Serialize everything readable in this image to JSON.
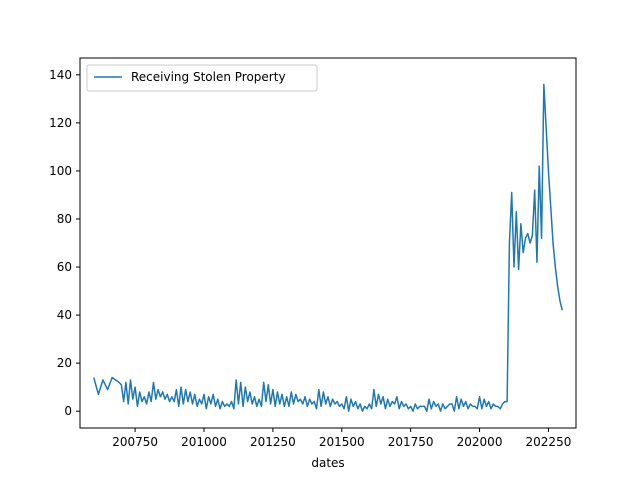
{
  "chart_data": {
    "type": "line",
    "title": "",
    "xlabel": "dates",
    "ylabel": "",
    "xlim": [
      200550,
      202350
    ],
    "ylim": [
      -7,
      147
    ],
    "xticks": [
      200750,
      201000,
      201250,
      201500,
      201750,
      202000,
      202250
    ],
    "yticks": [
      0,
      20,
      40,
      60,
      80,
      100,
      120,
      140
    ],
    "grid": false,
    "legend": {
      "placement": "top-left",
      "entries": [
        "Receiving Stolen Property"
      ]
    },
    "series": [
      {
        "name": "Receiving Stolen Property",
        "color": "#1f77b4",
        "x": [
          200601,
          200603,
          200605,
          200607,
          200609,
          200612,
          200701,
          200702,
          200703,
          200704,
          200705,
          200706,
          200707,
          200708,
          200709,
          200710,
          200711,
          200712,
          200801,
          200802,
          200803,
          200804,
          200805,
          200806,
          200807,
          200808,
          200809,
          200810,
          200811,
          200812,
          200901,
          200902,
          200903,
          200904,
          200905,
          200906,
          200907,
          200908,
          200909,
          200910,
          200911,
          200912,
          201001,
          201002,
          201003,
          201004,
          201005,
          201006,
          201007,
          201008,
          201009,
          201010,
          201011,
          201012,
          201101,
          201102,
          201103,
          201104,
          201105,
          201106,
          201107,
          201108,
          201109,
          201110,
          201111,
          201112,
          201201,
          201202,
          201203,
          201204,
          201205,
          201206,
          201207,
          201208,
          201209,
          201210,
          201211,
          201212,
          201301,
          201302,
          201303,
          201304,
          201305,
          201306,
          201307,
          201308,
          201309,
          201310,
          201311,
          201312,
          201401,
          201402,
          201403,
          201404,
          201405,
          201406,
          201407,
          201408,
          201409,
          201410,
          201411,
          201412,
          201501,
          201502,
          201503,
          201504,
          201505,
          201506,
          201507,
          201508,
          201509,
          201510,
          201511,
          201512,
          201601,
          201602,
          201603,
          201604,
          201605,
          201606,
          201607,
          201608,
          201609,
          201610,
          201611,
          201612,
          201701,
          201702,
          201703,
          201704,
          201705,
          201706,
          201707,
          201708,
          201709,
          201710,
          201711,
          201712,
          201801,
          201802,
          201803,
          201804,
          201805,
          201806,
          201807,
          201808,
          201809,
          201810,
          201811,
          201812,
          201901,
          201902,
          201903,
          201904,
          201905,
          201906,
          201907,
          201908,
          201909,
          201910,
          201911,
          201912,
          202001,
          202002,
          202003,
          202004,
          202005,
          202006,
          202007,
          202008,
          202009,
          202010,
          202011,
          202012,
          202101,
          202102,
          202103,
          202104,
          202105,
          202106,
          202107,
          202108,
          202109,
          202110,
          202111,
          202112,
          202201,
          202202,
          202203,
          202204,
          202205,
          202206,
          202207,
          202208,
          202209,
          202210,
          202211,
          202212,
          202301
        ],
        "values": [
          14,
          7,
          13,
          9,
          14,
          12,
          11,
          4,
          12,
          3,
          13,
          5,
          10,
          2,
          8,
          4,
          6,
          3,
          8,
          4,
          12,
          5,
          9,
          6,
          8,
          5,
          7,
          4,
          6,
          4,
          9,
          2,
          10,
          3,
          9,
          4,
          8,
          3,
          7,
          2,
          5,
          3,
          7,
          1,
          6,
          3,
          7,
          2,
          5,
          1,
          4,
          2,
          3,
          2,
          4,
          1,
          13,
          3,
          12,
          2,
          10,
          4,
          8,
          3,
          6,
          2,
          5,
          2,
          12,
          4,
          11,
          3,
          9,
          2,
          8,
          3,
          7,
          2,
          6,
          2,
          8,
          3,
          7,
          4,
          5,
          3,
          6,
          2,
          5,
          3,
          4,
          1,
          9,
          2,
          8,
          3,
          6,
          2,
          5,
          3,
          4,
          2,
          3,
          1,
          6,
          0,
          5,
          2,
          4,
          1,
          3,
          0,
          2,
          1,
          3,
          1,
          9,
          2,
          7,
          3,
          6,
          1,
          5,
          2,
          4,
          3,
          6,
          1,
          4,
          2,
          3,
          1,
          2,
          0,
          3,
          1,
          2,
          2,
          2,
          0,
          5,
          1,
          4,
          2,
          3,
          0,
          3,
          1,
          2,
          3,
          3,
          0,
          6,
          1,
          5,
          2,
          4,
          1,
          3,
          2,
          2,
          1,
          6,
          1,
          5,
          2,
          4,
          1,
          3,
          2,
          2,
          1,
          3,
          4,
          4,
          70,
          91,
          60,
          83,
          59,
          78,
          66,
          72,
          74,
          70,
          73,
          92,
          62,
          102,
          72,
          136,
          118,
          100,
          85,
          70,
          60,
          52,
          46,
          42
        ]
      }
    ]
  }
}
